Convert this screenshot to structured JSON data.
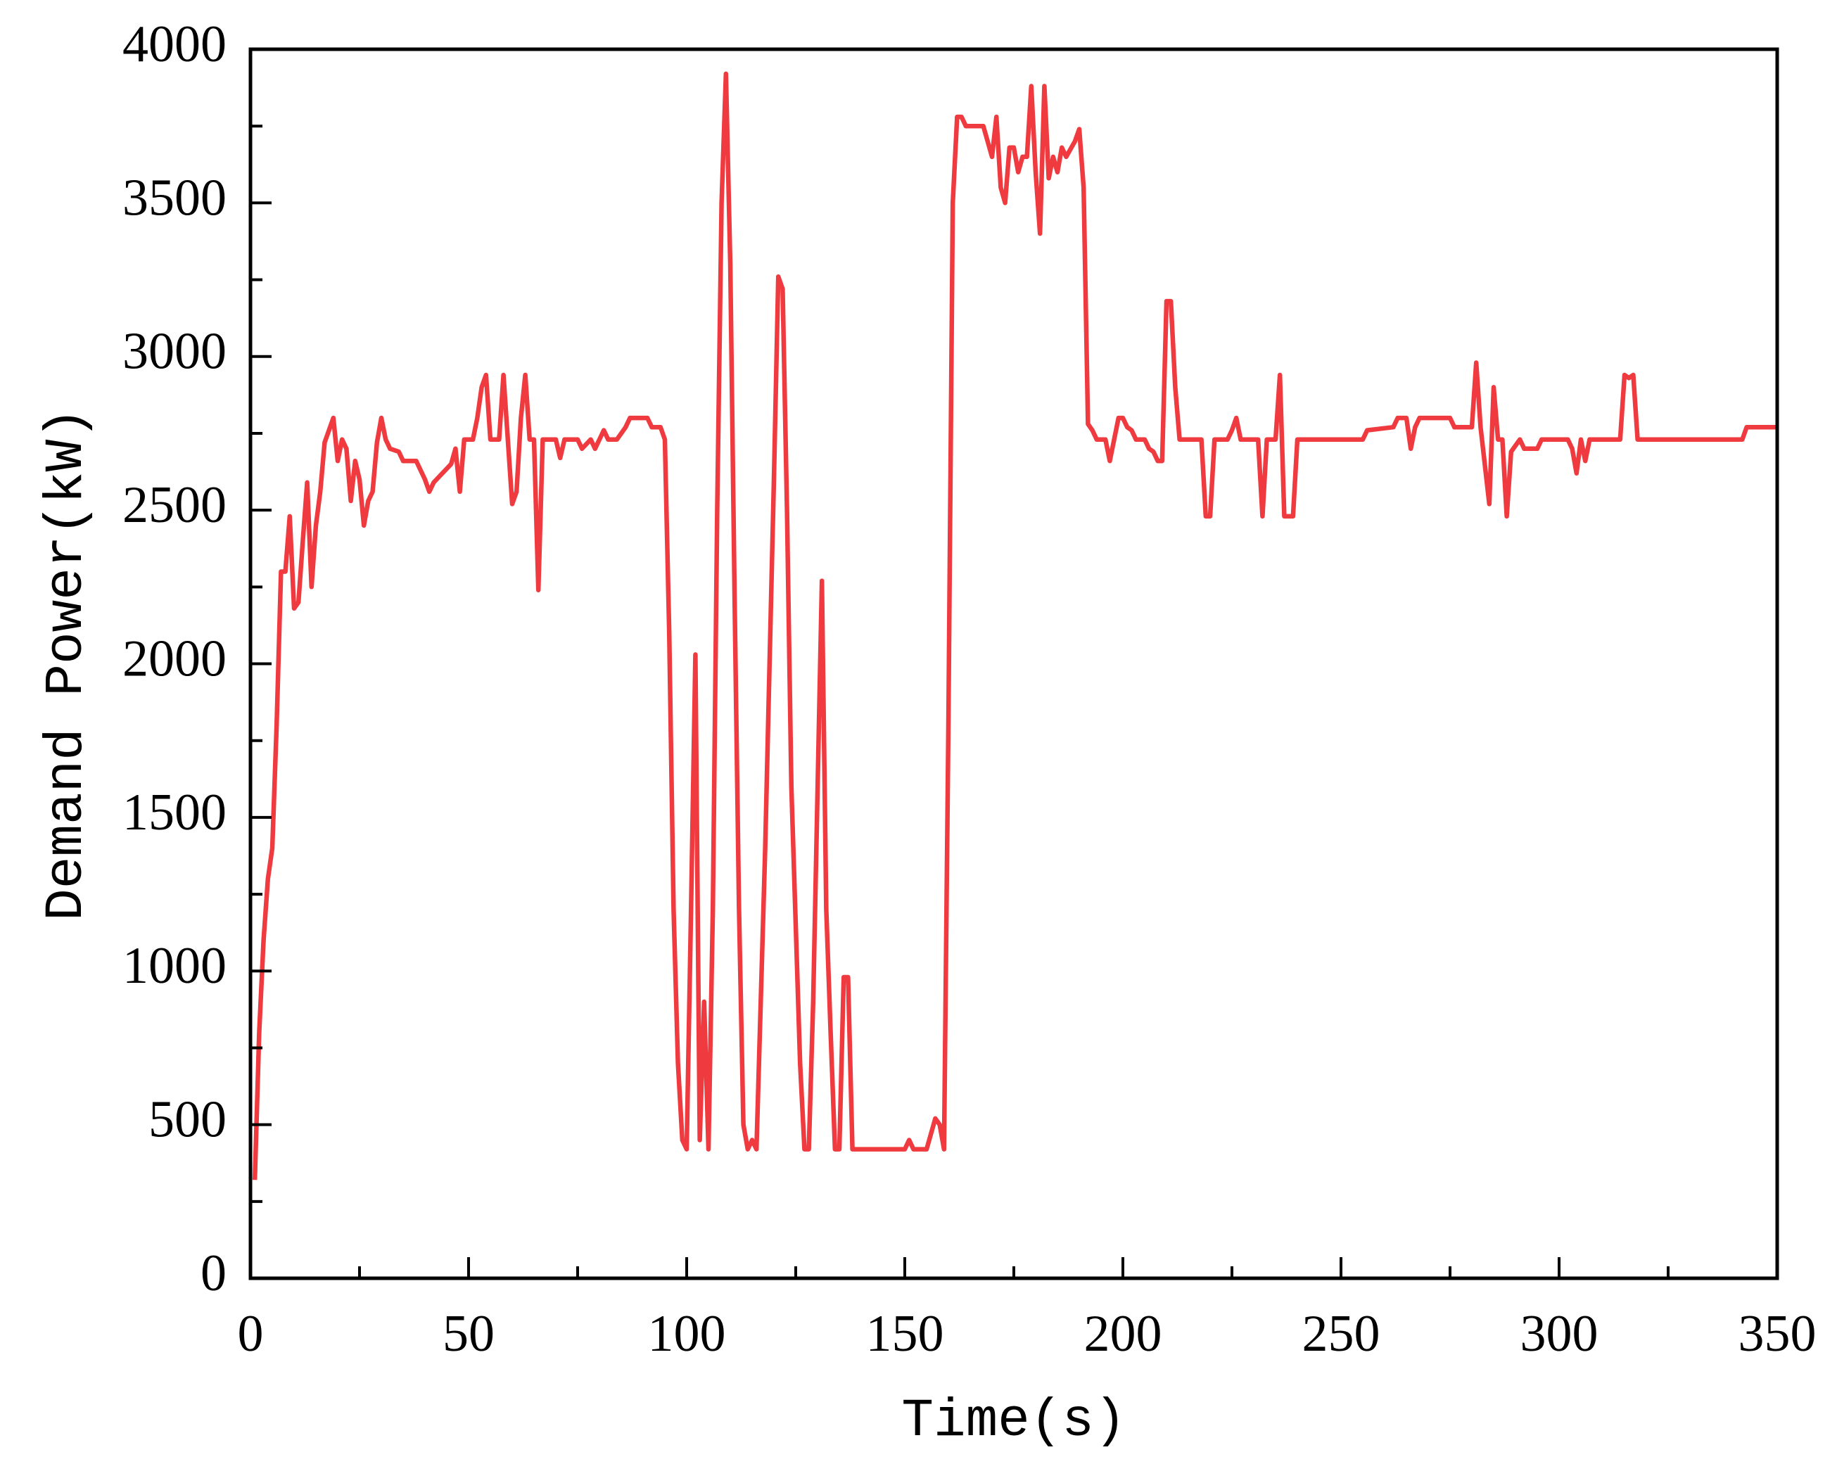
{
  "chart_data": {
    "type": "line",
    "x_label": "Time(s)",
    "y_label": "Demand Power(kW)",
    "x": [
      1,
      2,
      3,
      4,
      5,
      6,
      7,
      8,
      9,
      10,
      11,
      12,
      13,
      14,
      15,
      16,
      17,
      18,
      19,
      20,
      21,
      22,
      23,
      24,
      25,
      26,
      27,
      28,
      29,
      30,
      31,
      32,
      34,
      35,
      38,
      40,
      41,
      42,
      44,
      46,
      47,
      48,
      49,
      51,
      52,
      53,
      54,
      55,
      57,
      58,
      59,
      60,
      61,
      62,
      63,
      64,
      65,
      66,
      67,
      70,
      71,
      72,
      75,
      76,
      78,
      79,
      81,
      82,
      84,
      86,
      87,
      91,
      92,
      94,
      95,
      96,
      97,
      98,
      99,
      100,
      101,
      102,
      103,
      104,
      105,
      106,
      107,
      108,
      109,
      110,
      111,
      112,
      113,
      114,
      115,
      116,
      118,
      120,
      121,
      122,
      123,
      124,
      126,
      127,
      128,
      129,
      131,
      132,
      133,
      134,
      135,
      136,
      137,
      138,
      150,
      151,
      152,
      155,
      157,
      158,
      159,
      160,
      161,
      162,
      163,
      164,
      168,
      169,
      170,
      171,
      172,
      173,
      174,
      175,
      176,
      177,
      178,
      179,
      180,
      181,
      182,
      183,
      184,
      185,
      186,
      187,
      189,
      190,
      191,
      192,
      193,
      194,
      196,
      197,
      198,
      199,
      200,
      201,
      202,
      203,
      205,
      206,
      207,
      208,
      209,
      210,
      211,
      212,
      213,
      218,
      219,
      220,
      221,
      224,
      225,
      226,
      227,
      231,
      232,
      233,
      235,
      236,
      237,
      239,
      240,
      255,
      256,
      262,
      263,
      265,
      266,
      267,
      268,
      275,
      276,
      280,
      281,
      282,
      284,
      285,
      286,
      287,
      288,
      289,
      291,
      292,
      295,
      296,
      302,
      303,
      304,
      305,
      306,
      307,
      314,
      315,
      316,
      317,
      318,
      342,
      343,
      350
    ],
    "series": [
      {
        "color": "#ef3b3f",
        "values": [
          320,
          800,
          1100,
          1300,
          1400,
          1800,
          2300,
          2300,
          2480,
          2180,
          2200,
          2400,
          2590,
          2250,
          2450,
          2560,
          2720,
          2760,
          2800,
          2660,
          2730,
          2700,
          2530,
          2660,
          2600,
          2450,
          2530,
          2560,
          2720,
          2800,
          2730,
          2700,
          2690,
          2660,
          2660,
          2600,
          2560,
          2590,
          2620,
          2650,
          2700,
          2560,
          2730,
          2730,
          2800,
          2900,
          2940,
          2730,
          2730,
          2940,
          2730,
          2520,
          2560,
          2800,
          2940,
          2730,
          2730,
          2240,
          2730,
          2730,
          2670,
          2730,
          2730,
          2700,
          2730,
          2700,
          2760,
          2730,
          2730,
          2770,
          2800,
          2800,
          2770,
          2770,
          2730,
          2100,
          1200,
          700,
          450,
          420,
          1200,
          2030,
          450,
          900,
          420,
          1200,
          2500,
          3500,
          3920,
          3300,
          2200,
          1200,
          500,
          420,
          450,
          420,
          1400,
          2600,
          3260,
          3220,
          2500,
          1600,
          700,
          420,
          420,
          900,
          2270,
          1200,
          800,
          420,
          420,
          980,
          980,
          420,
          420,
          450,
          420,
          420,
          520,
          500,
          420,
          1800,
          3500,
          3780,
          3780,
          3750,
          3750,
          3700,
          3650,
          3780,
          3550,
          3500,
          3680,
          3680,
          3600,
          3650,
          3650,
          3880,
          3600,
          3400,
          3880,
          3580,
          3650,
          3600,
          3680,
          3650,
          3700,
          3740,
          3550,
          2780,
          2760,
          2730,
          2730,
          2660,
          2730,
          2800,
          2800,
          2770,
          2760,
          2730,
          2730,
          2700,
          2690,
          2660,
          2660,
          3180,
          3180,
          2900,
          2730,
          2730,
          2480,
          2480,
          2730,
          2730,
          2760,
          2800,
          2730,
          2730,
          2480,
          2730,
          2730,
          2940,
          2480,
          2480,
          2730,
          2730,
          2760,
          2770,
          2800,
          2800,
          2700,
          2770,
          2800,
          2800,
          2770,
          2770,
          2980,
          2770,
          2520,
          2900,
          2730,
          2730,
          2480,
          2690,
          2730,
          2700,
          2700,
          2730,
          2730,
          2700,
          2620,
          2730,
          2660,
          2730,
          2730,
          2940,
          2930,
          2940,
          2730,
          2730,
          2770,
          2770
        ]
      }
    ],
    "xlim": [
      0,
      350
    ],
    "xticks": [
      0,
      50,
      100,
      150,
      200,
      250,
      300,
      350
    ],
    "ylim": [
      0,
      4000
    ],
    "yticks": [
      0,
      500,
      1000,
      1500,
      2000,
      2500,
      3000,
      3500,
      4000
    ]
  }
}
